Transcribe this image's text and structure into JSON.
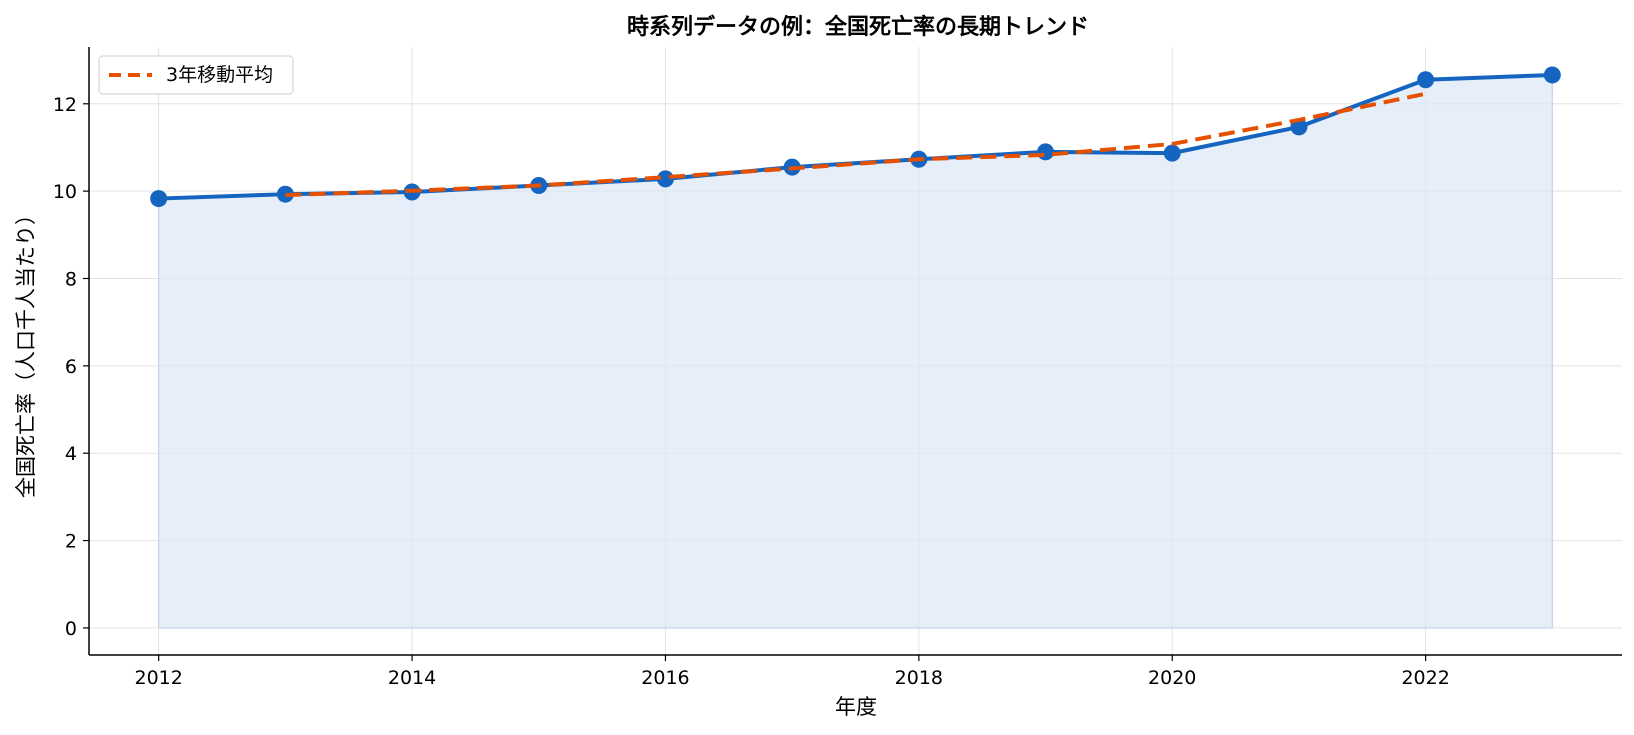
{
  "chart_data": {
    "type": "line",
    "title": "時系列データの例：全国死亡率の長期トレンド",
    "xlabel": "年度",
    "ylabel": "全国死亡率（人口千人当たり）",
    "xlim": [
      2011.45,
      2023.55
    ],
    "ylim": [
      -0.62,
      13.3
    ],
    "x_ticks": [
      2012,
      2014,
      2016,
      2018,
      2020,
      2022
    ],
    "y_ticks": [
      0,
      2,
      4,
      6,
      8,
      10,
      12
    ],
    "grid": true,
    "legend_position": "top-left",
    "x": [
      2012,
      2013,
      2014,
      2015,
      2016,
      2017,
      2018,
      2019,
      2020,
      2021,
      2022,
      2023
    ],
    "series": [
      {
        "name": "",
        "style": "line-markers-area",
        "color": "#1565c0",
        "fill_color": "#dce8f6",
        "values": [
          9.83,
          9.93,
          9.98,
          10.13,
          10.28,
          10.55,
          10.73,
          10.9,
          10.87,
          11.47,
          12.55,
          12.66
        ]
      },
      {
        "name": "3年移動平均",
        "style": "dashed",
        "color": "#e65100",
        "x": [
          2013,
          2014,
          2015,
          2016,
          2017,
          2018,
          2019,
          2020,
          2021,
          2022
        ],
        "values": [
          9.91,
          10.01,
          10.13,
          10.32,
          10.52,
          10.73,
          10.83,
          11.08,
          11.63,
          12.23
        ]
      }
    ]
  }
}
